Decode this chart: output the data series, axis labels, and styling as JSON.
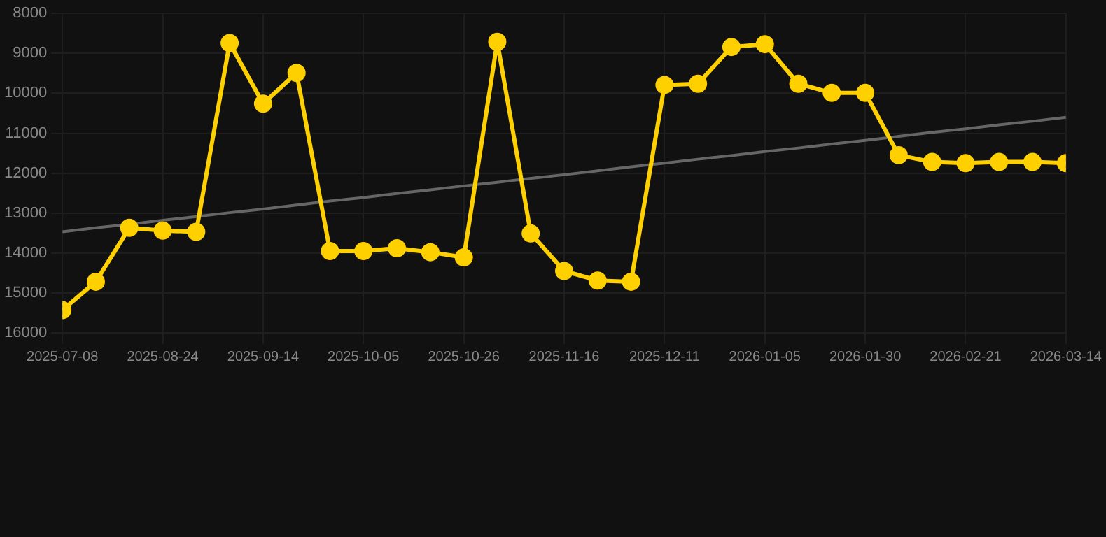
{
  "chart_data": {
    "type": "line",
    "categories": [
      "2025-07-08",
      null,
      null,
      "2025-08-24",
      null,
      null,
      "2025-09-14",
      null,
      null,
      "2025-10-05",
      null,
      null,
      "2025-10-26",
      null,
      null,
      "2025-11-16",
      null,
      null,
      "2025-12-11",
      null,
      null,
      "2026-01-05",
      null,
      null,
      "2026-01-30",
      null,
      null,
      "2026-02-21",
      null,
      null,
      "2026-03-14"
    ],
    "series": [
      {
        "color": "#ffd000",
        "marker": "circle",
        "values": [
          15430,
          14720,
          13370,
          13440,
          13470,
          8740,
          10260,
          9490,
          13950,
          13950,
          13880,
          13980,
          14110,
          8710,
          13510,
          14450,
          14690,
          14720,
          9790,
          9760,
          8840,
          8770,
          9760,
          9990,
          9990,
          11550,
          11720,
          11750,
          11720,
          11720,
          11750
        ]
      },
      {
        "type": "line",
        "color": "#666666",
        "marker": "none",
        "values": [
          13470,
          13370,
          13280,
          13180,
          13090,
          12990,
          12900,
          12800,
          12700,
          12610,
          12510,
          12420,
          12320,
          12230,
          12130,
          12040,
          11940,
          11840,
          11750,
          11650,
          11560,
          11460,
          11370,
          11270,
          11180,
          11080,
          10980,
          10890,
          10790,
          10700,
          10600
        ]
      }
    ],
    "ylim": [
      16000,
      8000
    ],
    "yticks": [
      8000,
      9000,
      10000,
      11000,
      12000,
      13000,
      14000,
      15000,
      16000
    ],
    "grid": true,
    "legend": false
  }
}
